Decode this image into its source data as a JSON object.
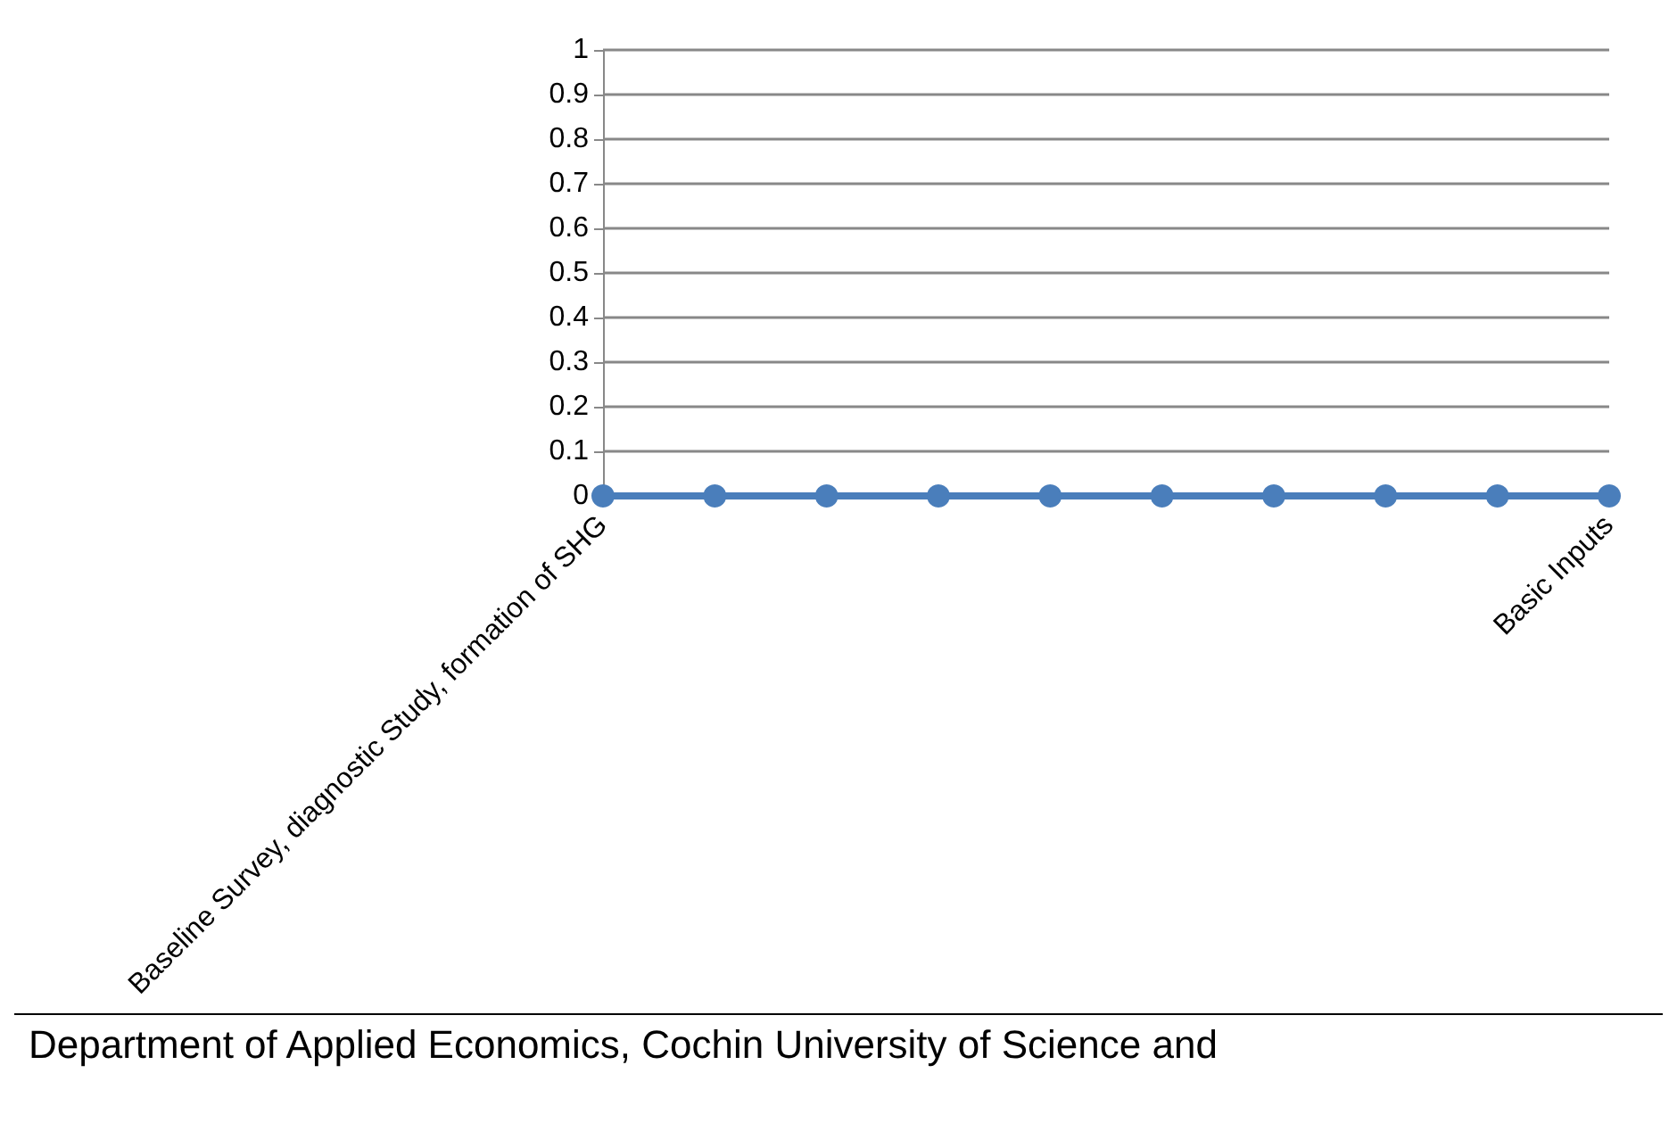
{
  "chart_data": {
    "type": "line",
    "categories": [
      "Baseline Survey, diagnostic Study, formation of SHG",
      null,
      null,
      null,
      null,
      null,
      null,
      null,
      null,
      "Basic Inputs"
    ],
    "series": [
      {
        "color": "#4a7ebb",
        "values": [
          0,
          0,
          0,
          0,
          0,
          0,
          0,
          0,
          0,
          0
        ]
      }
    ],
    "ylim": [
      0,
      1
    ],
    "yticks": [
      0,
      0.1,
      0.2,
      0.3,
      0.4,
      0.5,
      0.6,
      0.7,
      0.8,
      0.9,
      1
    ],
    "grid": "y",
    "marker": "circle",
    "line_style": "solid",
    "annotations": [
      "Department of Applied Economics, Cochin University of Science and"
    ]
  }
}
